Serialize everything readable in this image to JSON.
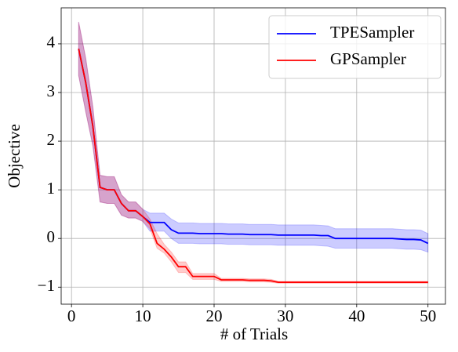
{
  "chart_data": {
    "type": "line_band",
    "xlabel": "# of Trials",
    "ylabel": "Objective",
    "x": [
      1,
      2,
      3,
      4,
      5,
      6,
      7,
      8,
      9,
      10,
      11,
      12,
      13,
      14,
      15,
      16,
      17,
      18,
      19,
      20,
      21,
      22,
      23,
      24,
      25,
      26,
      27,
      28,
      29,
      30,
      31,
      32,
      33,
      34,
      35,
      36,
      37,
      38,
      39,
      40,
      41,
      42,
      43,
      44,
      45,
      46,
      47,
      48,
      49,
      50
    ],
    "series": [
      {
        "name": "TPESampler",
        "color": "#0000ff",
        "values": [
          3.9,
          3.2,
          2.3,
          1.05,
          1.0,
          1.0,
          0.72,
          0.57,
          0.57,
          0.45,
          0.33,
          0.33,
          0.33,
          0.18,
          0.11,
          0.11,
          0.11,
          0.1,
          0.1,
          0.1,
          0.1,
          0.09,
          0.09,
          0.09,
          0.08,
          0.08,
          0.08,
          0.08,
          0.07,
          0.07,
          0.07,
          0.07,
          0.07,
          0.07,
          0.06,
          0.06,
          0.0,
          0.0,
          0.0,
          0.0,
          0.0,
          0.0,
          0.0,
          0.0,
          0.0,
          -0.01,
          -0.02,
          -0.02,
          -0.03,
          -0.1
        ],
        "lower": [
          3.35,
          2.6,
          1.9,
          0.75,
          0.72,
          0.72,
          0.48,
          0.42,
          0.42,
          0.35,
          0.15,
          0.15,
          0.15,
          0.0,
          -0.1,
          -0.1,
          -0.1,
          -0.11,
          -0.11,
          -0.11,
          -0.11,
          -0.12,
          -0.12,
          -0.12,
          -0.13,
          -0.13,
          -0.13,
          -0.13,
          -0.14,
          -0.14,
          -0.14,
          -0.14,
          -0.14,
          -0.14,
          -0.15,
          -0.16,
          -0.2,
          -0.2,
          -0.2,
          -0.2,
          -0.2,
          -0.2,
          -0.2,
          -0.2,
          -0.2,
          -0.21,
          -0.22,
          -0.22,
          -0.23,
          -0.28
        ],
        "upper": [
          4.45,
          3.7,
          2.7,
          1.3,
          1.27,
          1.27,
          0.9,
          0.75,
          0.75,
          0.6,
          0.52,
          0.52,
          0.52,
          0.4,
          0.32,
          0.32,
          0.32,
          0.31,
          0.31,
          0.31,
          0.31,
          0.3,
          0.3,
          0.3,
          0.29,
          0.29,
          0.29,
          0.29,
          0.28,
          0.28,
          0.28,
          0.28,
          0.28,
          0.28,
          0.27,
          0.26,
          0.2,
          0.2,
          0.2,
          0.2,
          0.2,
          0.2,
          0.2,
          0.2,
          0.2,
          0.19,
          0.18,
          0.18,
          0.17,
          0.1
        ]
      },
      {
        "name": "GPSampler",
        "color": "#ff0000",
        "values": [
          3.9,
          3.2,
          2.3,
          1.05,
          1.0,
          1.0,
          0.72,
          0.57,
          0.57,
          0.45,
          0.3,
          -0.1,
          -0.22,
          -0.38,
          -0.58,
          -0.58,
          -0.78,
          -0.78,
          -0.78,
          -0.78,
          -0.85,
          -0.85,
          -0.85,
          -0.85,
          -0.86,
          -0.86,
          -0.86,
          -0.87,
          -0.9,
          -0.9,
          -0.9,
          -0.9,
          -0.9,
          -0.9,
          -0.9,
          -0.9,
          -0.9,
          -0.9,
          -0.9,
          -0.9,
          -0.9,
          -0.9,
          -0.9,
          -0.9,
          -0.9,
          -0.9,
          -0.9,
          -0.9,
          -0.9,
          -0.9
        ],
        "lower": [
          3.35,
          2.6,
          1.9,
          0.75,
          0.72,
          0.72,
          0.48,
          0.42,
          0.42,
          0.35,
          0.2,
          -0.2,
          -0.3,
          -0.48,
          -0.7,
          -0.7,
          -0.84,
          -0.84,
          -0.84,
          -0.84,
          -0.88,
          -0.88,
          -0.88,
          -0.88,
          -0.89,
          -0.89,
          -0.89,
          -0.9,
          -0.92,
          -0.92,
          -0.92,
          -0.92,
          -0.92,
          -0.92,
          -0.92,
          -0.92,
          -0.92,
          -0.92,
          -0.92,
          -0.92,
          -0.92,
          -0.92,
          -0.92,
          -0.92,
          -0.92,
          -0.92,
          -0.92,
          -0.92,
          -0.92,
          -0.92
        ],
        "upper": [
          4.45,
          3.7,
          2.7,
          1.3,
          1.27,
          1.27,
          0.9,
          0.75,
          0.75,
          0.6,
          0.4,
          0.1,
          -0.12,
          -0.28,
          -0.48,
          -0.48,
          -0.72,
          -0.72,
          -0.72,
          -0.72,
          -0.82,
          -0.82,
          -0.82,
          -0.82,
          -0.83,
          -0.83,
          -0.83,
          -0.84,
          -0.88,
          -0.88,
          -0.88,
          -0.88,
          -0.88,
          -0.88,
          -0.88,
          -0.88,
          -0.88,
          -0.88,
          -0.88,
          -0.88,
          -0.88,
          -0.88,
          -0.88,
          -0.88,
          -0.88,
          -0.88,
          -0.88,
          -0.88,
          -0.88,
          -0.88
        ]
      }
    ],
    "xlim": [
      -1.45,
      52.45
    ],
    "ylim": [
      -1.35,
      4.74
    ],
    "xticks": [
      0,
      10,
      20,
      30,
      40,
      50
    ],
    "yticks": [
      {
        "value": -1,
        "label": "−1"
      },
      0,
      1,
      2,
      3,
      4
    ],
    "grid": true,
    "legend": "upper right"
  }
}
